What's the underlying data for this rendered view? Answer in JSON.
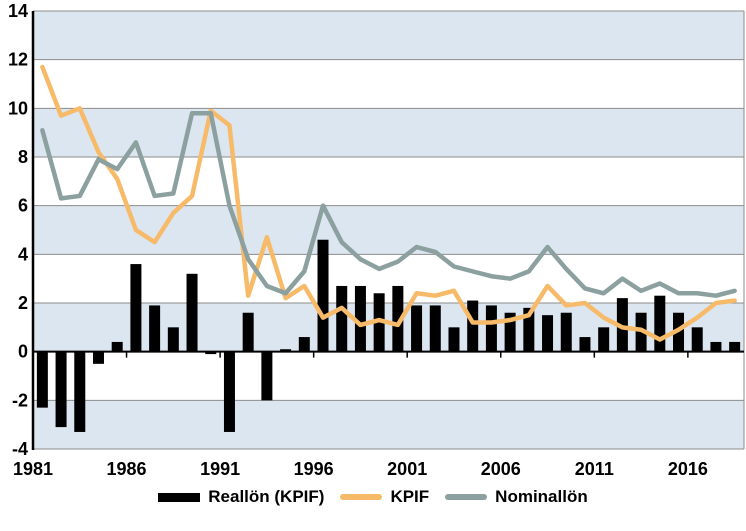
{
  "chart_data": {
    "type": "combo",
    "title": "",
    "categories": [
      1981,
      1982,
      1983,
      1984,
      1985,
      1986,
      1987,
      1988,
      1989,
      1990,
      1991,
      1992,
      1993,
      1994,
      1995,
      1996,
      1997,
      1998,
      1999,
      2000,
      2001,
      2002,
      2003,
      2004,
      2005,
      2006,
      2007,
      2008,
      2009,
      2010,
      2011,
      2012,
      2013,
      2014,
      2015,
      2016,
      2017,
      2018
    ],
    "series": [
      {
        "name": "Reallön (KPIF)",
        "type": "bar",
        "color": "#000000",
        "values": [
          -2.3,
          -3.1,
          -3.3,
          -0.5,
          0.4,
          3.6,
          1.9,
          1.0,
          3.2,
          -0.1,
          -3.3,
          1.6,
          -2.0,
          0.1,
          0.6,
          4.6,
          2.7,
          2.7,
          2.4,
          2.7,
          1.9,
          1.9,
          1.0,
          2.1,
          1.9,
          1.6,
          1.8,
          1.5,
          1.6,
          0.6,
          1.0,
          2.2,
          1.6,
          2.3,
          1.6,
          1.0,
          0.4,
          0.4
        ]
      },
      {
        "name": "KPIF",
        "type": "line",
        "color": "#f7ba68",
        "values": [
          11.7,
          9.7,
          10.0,
          8.2,
          7.1,
          5.0,
          4.5,
          5.7,
          6.4,
          9.9,
          9.3,
          2.3,
          4.7,
          2.2,
          2.7,
          1.4,
          1.8,
          1.1,
          1.3,
          1.1,
          2.4,
          2.3,
          2.5,
          1.2,
          1.2,
          1.3,
          1.5,
          2.7,
          1.9,
          2.0,
          1.4,
          1.0,
          0.9,
          0.5,
          0.9,
          1.4,
          2.0,
          2.1
        ]
      },
      {
        "name": "Nominallön",
        "type": "line",
        "color": "#8ca0a0",
        "values": [
          9.1,
          6.3,
          6.4,
          7.9,
          7.5,
          8.6,
          6.4,
          6.5,
          9.8,
          9.8,
          6.0,
          3.8,
          2.7,
          2.4,
          3.3,
          6.0,
          4.5,
          3.8,
          3.4,
          3.7,
          4.3,
          4.1,
          3.5,
          3.3,
          3.1,
          3.0,
          3.3,
          4.3,
          3.4,
          2.6,
          2.4,
          3.0,
          2.5,
          2.8,
          2.4,
          2.4,
          2.3,
          2.5
        ]
      }
    ],
    "xlabel": "",
    "ylabel": "",
    "y_axis": {
      "min": -4,
      "max": 14,
      "step": 2,
      "tick_labels": [
        "-4",
        "-2",
        "0",
        "2",
        "4",
        "6",
        "8",
        "10",
        "12",
        "14"
      ]
    },
    "x_axis": {
      "label_years": [
        1981,
        1986,
        1991,
        1996,
        2001,
        2006,
        2011,
        2016
      ]
    },
    "legend_position": "bottom",
    "grid": "horizontal",
    "style": {
      "band_color": "#dce6f1",
      "gridline_color": "#8c8c8c",
      "axis_color": "#000000",
      "background": "#ffffff"
    }
  },
  "legend": {
    "items": [
      "Reallön (KPIF)",
      "KPIF",
      "Nominallön"
    ]
  }
}
